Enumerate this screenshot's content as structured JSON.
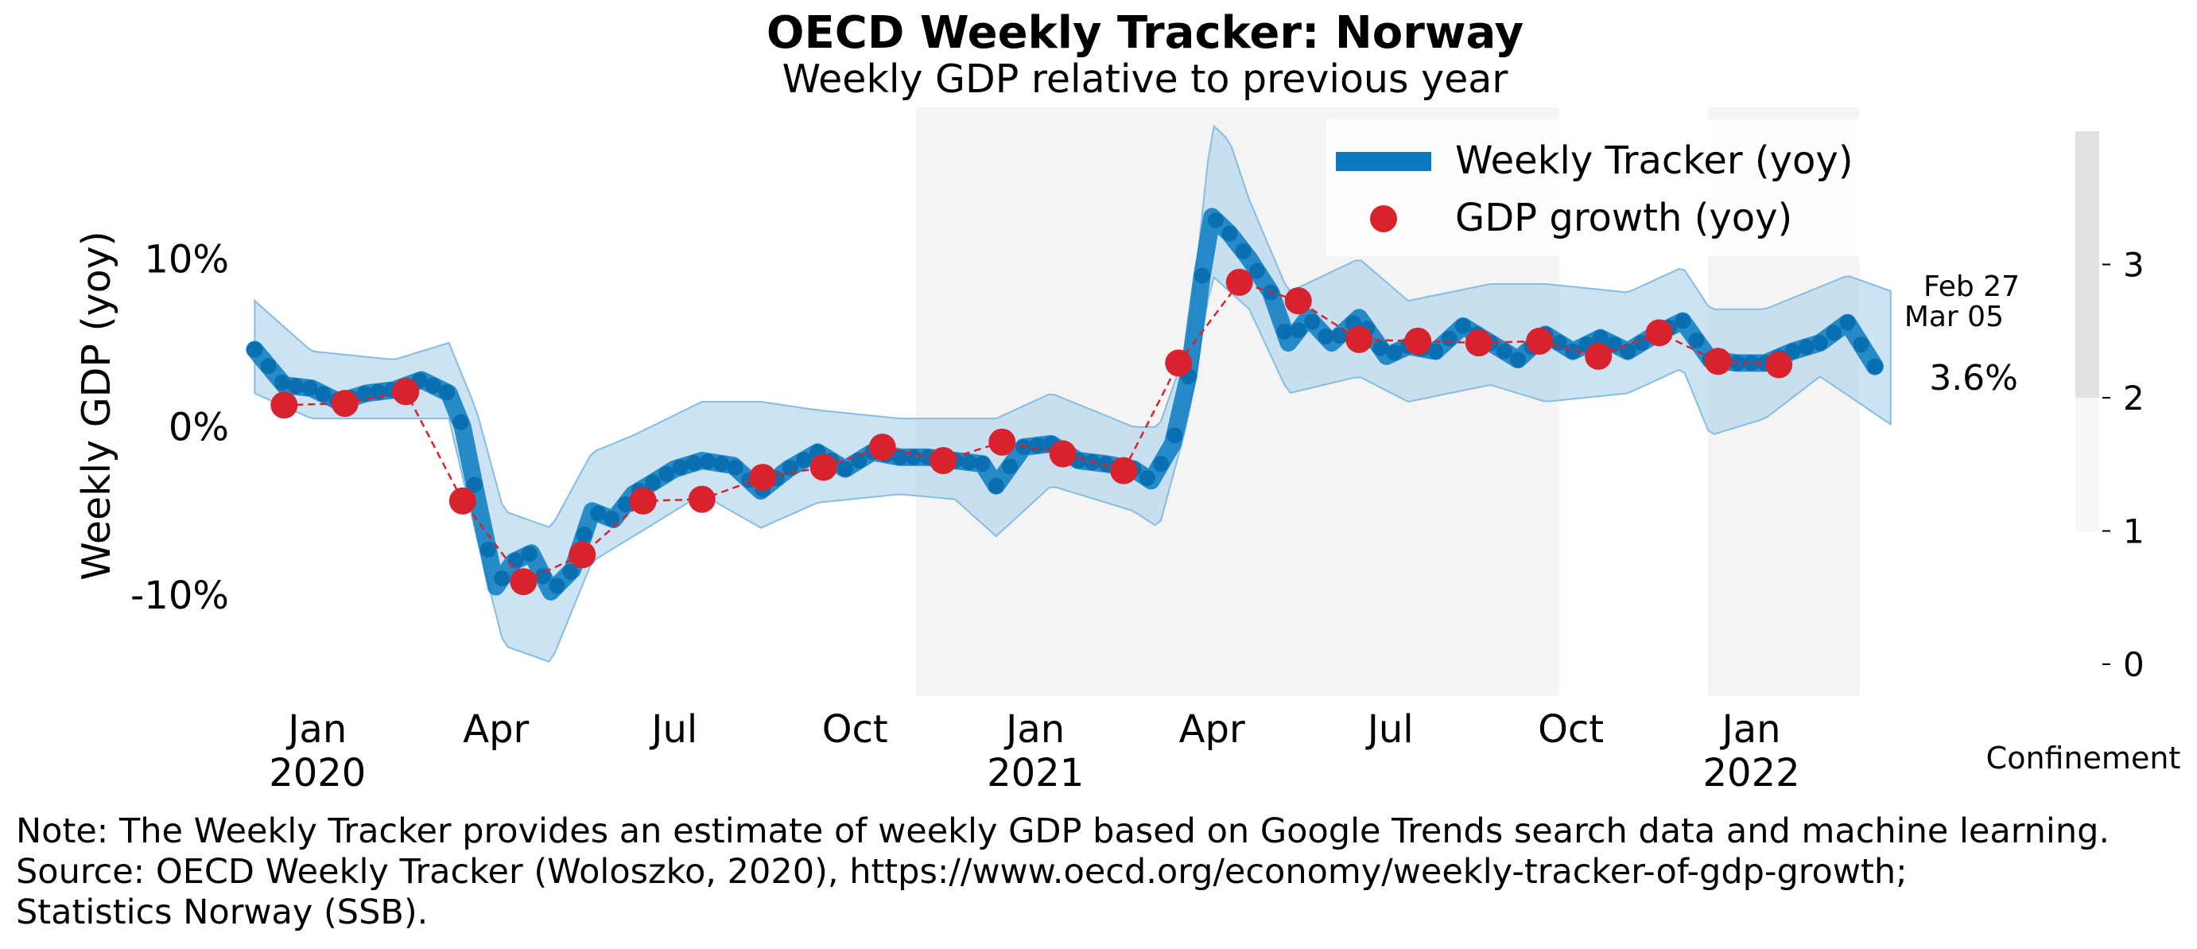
{
  "chart_data": {
    "type": "line",
    "title": "OECD Weekly Tracker: Norway",
    "subtitle": "Weekly GDP relative to previous year",
    "ylabel": "Weekly GDP (yoy)",
    "ylim": [
      -16,
      19
    ],
    "y_ticks": [
      {
        "value": 10,
        "label": "10%"
      },
      {
        "value": 0,
        "label": "0%"
      },
      {
        "value": -10,
        "label": "-10%"
      }
    ],
    "x_range": [
      "2019-11-25",
      "2022-03-20"
    ],
    "x_ticks": [
      {
        "date": "2020-01-01",
        "label": "Jan",
        "year": "2020"
      },
      {
        "date": "2020-04-01",
        "label": "Apr",
        "year": ""
      },
      {
        "date": "2020-07-01",
        "label": "Jul",
        "year": ""
      },
      {
        "date": "2020-10-01",
        "label": "Oct",
        "year": ""
      },
      {
        "date": "2021-01-01",
        "label": "Jan",
        "year": "2021"
      },
      {
        "date": "2021-04-01",
        "label": "Apr",
        "year": ""
      },
      {
        "date": "2021-07-01",
        "label": "Jul",
        "year": ""
      },
      {
        "date": "2021-10-01",
        "label": "Oct",
        "year": ""
      },
      {
        "date": "2022-01-01",
        "label": "Jan",
        "year": "2022"
      }
    ],
    "confinement_periods": [
      {
        "start": "2020-11-01",
        "end": "2021-09-25",
        "level": 1
      },
      {
        "start": "2021-12-10",
        "end": "2022-02-25",
        "level": 1
      }
    ],
    "series": [
      {
        "name": "Weekly Tracker (yoy)",
        "color": "#0a7bc1",
        "points": [
          [
            "2019-11-30",
            4.6
          ],
          [
            "2019-12-15",
            2.5
          ],
          [
            "2019-12-29",
            2.3
          ],
          [
            "2020-01-12",
            1.5
          ],
          [
            "2020-01-26",
            2.0
          ],
          [
            "2020-02-09",
            2.2
          ],
          [
            "2020-02-23",
            2.8
          ],
          [
            "2020-03-08",
            2.0
          ],
          [
            "2020-03-15",
            0.0
          ],
          [
            "2020-03-22",
            -4.0
          ],
          [
            "2020-04-01",
            -9.5
          ],
          [
            "2020-04-10",
            -8.0
          ],
          [
            "2020-04-19",
            -7.5
          ],
          [
            "2020-04-29",
            -9.8
          ],
          [
            "2020-05-10",
            -8.5
          ],
          [
            "2020-05-20",
            -5.0
          ],
          [
            "2020-05-31",
            -5.5
          ],
          [
            "2020-06-10",
            -4.0
          ],
          [
            "2020-06-20",
            -3.3
          ],
          [
            "2020-07-01",
            -2.5
          ],
          [
            "2020-07-15",
            -2.0
          ],
          [
            "2020-07-31",
            -2.3
          ],
          [
            "2020-08-14",
            -3.8
          ],
          [
            "2020-08-28",
            -2.5
          ],
          [
            "2020-09-12",
            -1.5
          ],
          [
            "2020-09-26",
            -2.5
          ],
          [
            "2020-10-10",
            -1.5
          ],
          [
            "2020-10-24",
            -1.8
          ],
          [
            "2020-11-07",
            -1.8
          ],
          [
            "2020-11-21",
            -2.0
          ],
          [
            "2020-12-05",
            -2.2
          ],
          [
            "2020-12-12",
            -3.5
          ],
          [
            "2020-12-26",
            -1.2
          ],
          [
            "2021-01-09",
            -1.0
          ],
          [
            "2021-01-23",
            -2.0
          ],
          [
            "2021-02-06",
            -2.2
          ],
          [
            "2021-02-20",
            -2.5
          ],
          [
            "2021-03-01",
            -3.2
          ],
          [
            "2021-03-12",
            -1.0
          ],
          [
            "2021-03-20",
            3.0
          ],
          [
            "2021-03-27",
            9.0
          ],
          [
            "2021-04-01",
            12.5
          ],
          [
            "2021-04-10",
            11.5
          ],
          [
            "2021-04-20",
            10.0
          ],
          [
            "2021-05-01",
            8.0
          ],
          [
            "2021-05-10",
            5.0
          ],
          [
            "2021-05-20",
            6.5
          ],
          [
            "2021-06-01",
            5.0
          ],
          [
            "2021-06-15",
            6.5
          ],
          [
            "2021-06-29",
            4.2
          ],
          [
            "2021-07-10",
            4.8
          ],
          [
            "2021-07-24",
            4.5
          ],
          [
            "2021-08-07",
            6.0
          ],
          [
            "2021-08-21",
            5.0
          ],
          [
            "2021-09-04",
            4.0
          ],
          [
            "2021-09-18",
            5.5
          ],
          [
            "2021-10-02",
            4.5
          ],
          [
            "2021-10-16",
            5.3
          ],
          [
            "2021-10-30",
            4.5
          ],
          [
            "2021-11-13",
            5.5
          ],
          [
            "2021-11-27",
            6.3
          ],
          [
            "2021-12-11",
            4.0
          ],
          [
            "2021-12-25",
            3.8
          ],
          [
            "2022-01-08",
            3.8
          ],
          [
            "2022-01-22",
            4.5
          ],
          [
            "2022-02-05",
            5.0
          ],
          [
            "2022-02-19",
            6.2
          ],
          [
            "2022-03-05",
            3.6
          ]
        ],
        "band_lower": [
          [
            "2019-11-30",
            2.0
          ],
          [
            "2019-12-29",
            0.5
          ],
          [
            "2020-02-09",
            0.5
          ],
          [
            "2020-03-08",
            0.5
          ],
          [
            "2020-03-22",
            -6.5
          ],
          [
            "2020-04-05",
            -13.0
          ],
          [
            "2020-04-29",
            -14.0
          ],
          [
            "2020-05-20",
            -8.0
          ],
          [
            "2020-06-10",
            -6.5
          ],
          [
            "2020-07-15",
            -4.0
          ],
          [
            "2020-08-14",
            -6.0
          ],
          [
            "2020-09-12",
            -4.5
          ],
          [
            "2020-10-24",
            -4.0
          ],
          [
            "2020-11-21",
            -4.3
          ],
          [
            "2020-12-12",
            -6.5
          ],
          [
            "2021-01-09",
            -3.5
          ],
          [
            "2021-02-20",
            -5.0
          ],
          [
            "2021-03-05",
            -6.0
          ],
          [
            "2021-03-20",
            0.5
          ],
          [
            "2021-04-01",
            9.0
          ],
          [
            "2021-04-20",
            7.0
          ],
          [
            "2021-05-10",
            2.0
          ],
          [
            "2021-06-15",
            3.0
          ],
          [
            "2021-07-10",
            1.5
          ],
          [
            "2021-08-21",
            2.5
          ],
          [
            "2021-09-18",
            1.5
          ],
          [
            "2021-10-30",
            2.0
          ],
          [
            "2021-11-27",
            3.5
          ],
          [
            "2021-12-11",
            -0.5
          ],
          [
            "2022-01-08",
            0.5
          ],
          [
            "2022-02-05",
            3.0
          ],
          [
            "2022-03-15",
            0.0
          ]
        ],
        "band_upper": [
          [
            "2019-11-30",
            7.5
          ],
          [
            "2019-12-29",
            4.5
          ],
          [
            "2020-02-09",
            4.0
          ],
          [
            "2020-03-08",
            5.0
          ],
          [
            "2020-03-22",
            1.0
          ],
          [
            "2020-04-05",
            -5.0
          ],
          [
            "2020-04-29",
            -6.0
          ],
          [
            "2020-05-20",
            -1.5
          ],
          [
            "2020-06-10",
            -0.5
          ],
          [
            "2020-07-15",
            1.5
          ],
          [
            "2020-08-14",
            1.5
          ],
          [
            "2020-09-12",
            1.0
          ],
          [
            "2020-10-24",
            0.5
          ],
          [
            "2020-11-21",
            0.5
          ],
          [
            "2020-12-12",
            0.5
          ],
          [
            "2021-01-09",
            2.0
          ],
          [
            "2021-02-20",
            0.0
          ],
          [
            "2021-03-05",
            0.0
          ],
          [
            "2021-03-20",
            5.0
          ],
          [
            "2021-04-01",
            18.0
          ],
          [
            "2021-04-10",
            17.0
          ],
          [
            "2021-04-20",
            13.5
          ],
          [
            "2021-05-10",
            8.0
          ],
          [
            "2021-06-15",
            10.0
          ],
          [
            "2021-07-10",
            7.5
          ],
          [
            "2021-08-21",
            8.5
          ],
          [
            "2021-09-18",
            8.5
          ],
          [
            "2021-10-30",
            8.0
          ],
          [
            "2021-11-27",
            9.5
          ],
          [
            "2021-12-11",
            7.0
          ],
          [
            "2022-01-08",
            7.0
          ],
          [
            "2022-02-19",
            9.0
          ],
          [
            "2022-03-15",
            8.0
          ]
        ]
      },
      {
        "name": "GDP growth (yoy)",
        "color": "#d8222d",
        "points": [
          [
            "2019-12-15",
            1.3
          ],
          [
            "2020-01-15",
            1.4
          ],
          [
            "2020-02-15",
            2.1
          ],
          [
            "2020-03-15",
            -4.4
          ],
          [
            "2020-04-15",
            -9.2
          ],
          [
            "2020-05-15",
            -7.6
          ],
          [
            "2020-06-15",
            -4.4
          ],
          [
            "2020-07-15",
            -4.3
          ],
          [
            "2020-08-15",
            -3.0
          ],
          [
            "2020-09-15",
            -2.4
          ],
          [
            "2020-10-15",
            -1.2
          ],
          [
            "2020-11-15",
            -2.0
          ],
          [
            "2020-12-15",
            -0.9
          ],
          [
            "2021-01-15",
            -1.6
          ],
          [
            "2021-02-15",
            -2.6
          ],
          [
            "2021-03-15",
            3.8
          ],
          [
            "2021-04-15",
            8.6
          ],
          [
            "2021-05-15",
            7.5
          ],
          [
            "2021-06-15",
            5.2
          ],
          [
            "2021-07-15",
            5.1
          ],
          [
            "2021-08-15",
            5.0
          ],
          [
            "2021-09-15",
            5.1
          ],
          [
            "2021-10-15",
            4.2
          ],
          [
            "2021-11-15",
            5.6
          ],
          [
            "2021-12-15",
            3.9
          ],
          [
            "2022-01-15",
            3.7
          ]
        ]
      }
    ],
    "annotations": {
      "dates": [
        "Feb 27",
        "Mar 05"
      ],
      "last_value": "3.6%"
    },
    "legend": {
      "position": "top-right"
    },
    "confinement_scale": {
      "title": "Confinement",
      "ticks": [
        "3",
        "2",
        "1",
        "0"
      ],
      "colors": [
        "#e1e1e1",
        "#eeeeee",
        "#f6f6f6"
      ]
    },
    "colors": {
      "tracker": "#0a7bc1",
      "band": "#a9d0ea",
      "gdp": "#d8222d",
      "shade": "#f4f4f4"
    }
  },
  "note": {
    "line1": "Note: The Weekly Tracker provides an estimate of weekly GDP based on Google Trends search data and machine learning.",
    "line2": "Source: OECD Weekly Tracker (Woloszko, 2020), https://www.oecd.org/economy/weekly-tracker-of-gdp-growth;",
    "line3": "Statistics Norway (SSB)."
  }
}
